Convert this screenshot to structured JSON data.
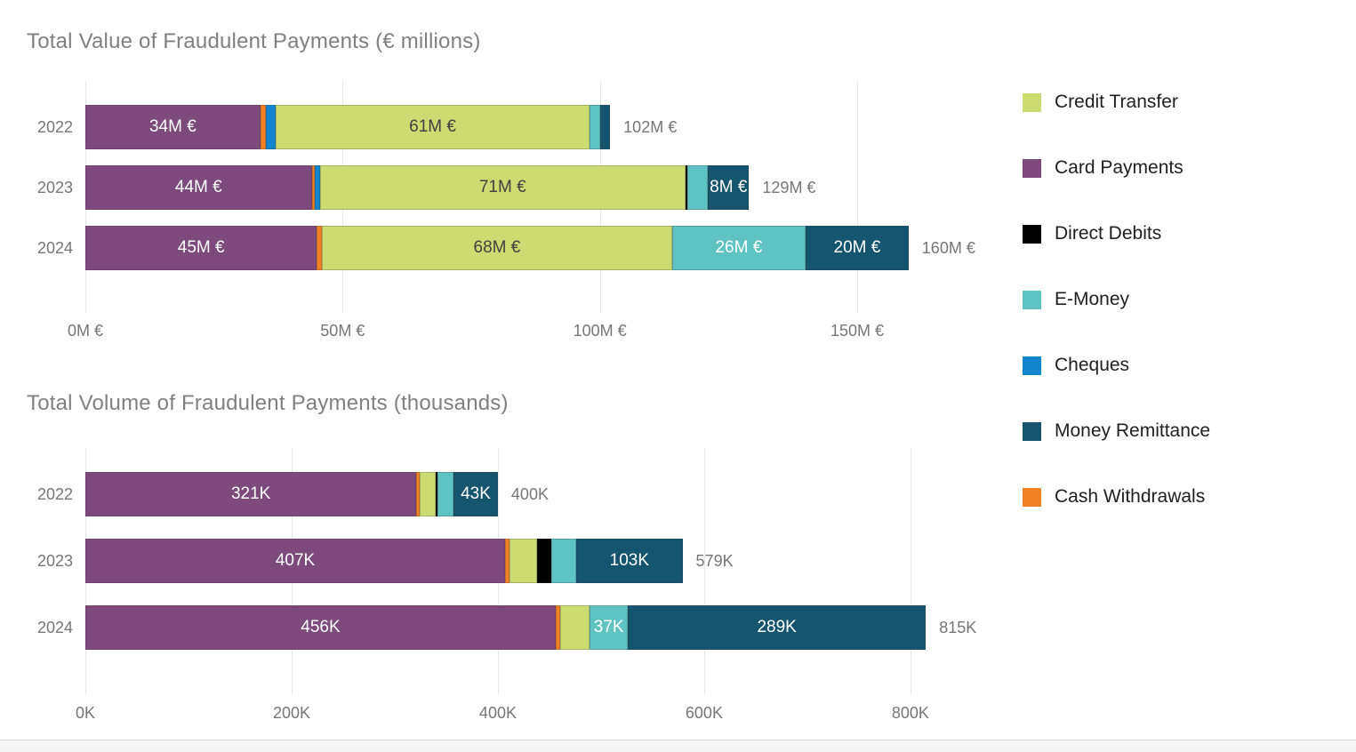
{
  "palette": {
    "credit_transfer": "#ccdb72",
    "card_payments": "#7e4a7e",
    "direct_debits": "#000000",
    "e_money": "#5fc3c3",
    "cheques": "#1185cd",
    "money_remittance": "#16556f",
    "cash_withdrawals": "#f28124"
  },
  "legend": {
    "position": "right",
    "items": [
      {
        "key": "credit_transfer",
        "label": "Credit Transfer"
      },
      {
        "key": "card_payments",
        "label": "Card Payments"
      },
      {
        "key": "direct_debits",
        "label": "Direct Debits"
      },
      {
        "key": "e_money",
        "label": "E-Money"
      },
      {
        "key": "cheques",
        "label": "Cheques"
      },
      {
        "key": "money_remittance",
        "label": "Money Remittance"
      },
      {
        "key": "cash_withdrawals",
        "label": "Cash Withdrawals"
      }
    ]
  },
  "chart_data": [
    {
      "type": "bar",
      "orientation": "horizontal-stacked",
      "title": "Total Value of Fraudulent Payments (€ millions)",
      "unit": "€ millions",
      "categories": [
        "2022",
        "2023",
        "2024"
      ],
      "axis": {
        "max": 178,
        "ticks": [
          {
            "value": 0,
            "label": "0M €"
          },
          {
            "value": 50,
            "label": "50M €"
          },
          {
            "value": 100,
            "label": "100M €"
          },
          {
            "value": 150,
            "label": "150M €"
          }
        ]
      },
      "rows": [
        {
          "category": "2022",
          "total": 102,
          "total_label": "102M €",
          "segments": [
            {
              "key": "card_payments",
              "value": 34,
              "label": "34M €"
            },
            {
              "key": "cash_withdrawals",
              "value": 1,
              "label": ""
            },
            {
              "key": "cheques",
              "value": 2,
              "label": ""
            },
            {
              "key": "credit_transfer",
              "value": 61,
              "label": "61M €"
            },
            {
              "key": "e_money",
              "value": 2,
              "label": ""
            },
            {
              "key": "money_remittance",
              "value": 2,
              "label": ""
            }
          ]
        },
        {
          "category": "2023",
          "total": 129,
          "total_label": "129M €",
          "segments": [
            {
              "key": "card_payments",
              "value": 44,
              "label": "44M €"
            },
            {
              "key": "cash_withdrawals",
              "value": 0.6,
              "label": ""
            },
            {
              "key": "cheques",
              "value": 1,
              "label": ""
            },
            {
              "key": "credit_transfer",
              "value": 71,
              "label": "71M €"
            },
            {
              "key": "direct_debits",
              "value": 0.4,
              "label": ""
            },
            {
              "key": "e_money",
              "value": 4,
              "label": ""
            },
            {
              "key": "money_remittance",
              "value": 8,
              "label": "8M €"
            }
          ]
        },
        {
          "category": "2024",
          "total": 160,
          "total_label": "160M €",
          "segments": [
            {
              "key": "card_payments",
              "value": 45,
              "label": "45M €"
            },
            {
              "key": "cash_withdrawals",
              "value": 1,
              "label": ""
            },
            {
              "key": "credit_transfer",
              "value": 68,
              "label": "68M €"
            },
            {
              "key": "e_money",
              "value": 26,
              "label": "26M €"
            },
            {
              "key": "money_remittance",
              "value": 20,
              "label": "20M €"
            }
          ]
        }
      ]
    },
    {
      "type": "bar",
      "orientation": "horizontal-stacked",
      "title": "Total Volume of Fraudulent Payments (thousands)",
      "unit": "thousands",
      "categories": [
        "2022",
        "2023",
        "2024"
      ],
      "axis": {
        "max": 888,
        "ticks": [
          {
            "value": 0,
            "label": "0K"
          },
          {
            "value": 200,
            "label": "200K"
          },
          {
            "value": 400,
            "label": "400K"
          },
          {
            "value": 600,
            "label": "600K"
          },
          {
            "value": 800,
            "label": "800K"
          }
        ]
      },
      "rows": [
        {
          "category": "2022",
          "total": 400,
          "total_label": "400K",
          "segments": [
            {
              "key": "card_payments",
              "value": 321,
              "label": "321K"
            },
            {
              "key": "cash_withdrawals",
              "value": 3,
              "label": ""
            },
            {
              "key": "credit_transfer",
              "value": 16,
              "label": ""
            },
            {
              "key": "direct_debits",
              "value": 1,
              "label": ""
            },
            {
              "key": "e_money",
              "value": 16,
              "label": ""
            },
            {
              "key": "money_remittance",
              "value": 43,
              "label": "43K"
            }
          ]
        },
        {
          "category": "2023",
          "total": 579,
          "total_label": "579K",
          "segments": [
            {
              "key": "card_payments",
              "value": 407,
              "label": "407K"
            },
            {
              "key": "cash_withdrawals",
              "value": 4,
              "label": ""
            },
            {
              "key": "credit_transfer",
              "value": 27,
              "label": ""
            },
            {
              "key": "direct_debits",
              "value": 14,
              "label": ""
            },
            {
              "key": "e_money",
              "value": 24,
              "label": ""
            },
            {
              "key": "money_remittance",
              "value": 103,
              "label": "103K"
            }
          ]
        },
        {
          "category": "2024",
          "total": 815,
          "total_label": "815K",
          "segments": [
            {
              "key": "card_payments",
              "value": 456,
              "label": "456K"
            },
            {
              "key": "cash_withdrawals",
              "value": 4,
              "label": ""
            },
            {
              "key": "credit_transfer",
              "value": 29,
              "label": ""
            },
            {
              "key": "e_money",
              "value": 37,
              "label": "37K"
            },
            {
              "key": "money_remittance",
              "value": 289,
              "label": "289K"
            }
          ]
        }
      ]
    }
  ]
}
